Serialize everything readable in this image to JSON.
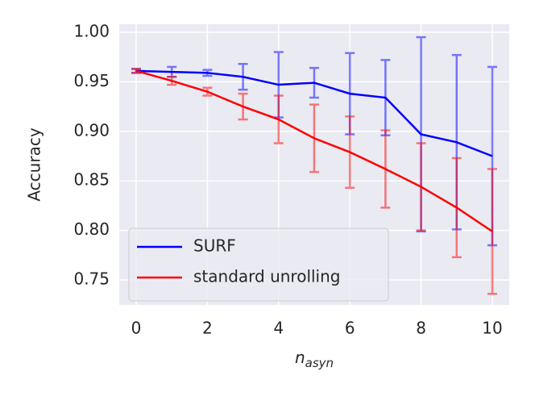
{
  "chart_data": {
    "type": "line",
    "ylabel": "Accuracy",
    "xlabel": {
      "base": "n",
      "subscript": "asyn"
    },
    "xlim": [
      -0.475,
      10.475
    ],
    "xticks": [
      0,
      2,
      4,
      6,
      8,
      10
    ],
    "ylim": [
      0.7248,
      1.0081
    ],
    "yticks": [
      0.75,
      {
        "value": 0.8,
        "label": "0.80"
      },
      0.85,
      {
        "value": 0.9,
        "label": "0.90"
      },
      0.95,
      {
        "value": 1,
        "label": "1.00"
      }
    ],
    "grid": true,
    "legend": "lower left",
    "x": [
      0,
      1,
      2,
      3,
      4,
      5,
      6,
      7,
      8,
      9,
      10
    ],
    "series": [
      {
        "name": "SURF",
        "color": "#0000ff",
        "values": [
          0.961,
          0.96,
          0.959,
          0.955,
          0.947,
          0.949,
          0.938,
          0.934,
          0.897,
          0.889,
          0.875
        ],
        "errors": [
          0.002,
          0.005,
          0.003,
          0.013,
          0.033,
          0.015,
          0.041,
          0.038,
          0.098,
          0.088,
          0.09
        ]
      },
      {
        "name": "standard unrolling",
        "color": "#ff0000",
        "values": [
          0.961,
          0.951,
          0.94,
          0.925,
          0.912,
          0.893,
          0.879,
          0.862,
          0.844,
          0.823,
          0.799
        ],
        "errors": [
          0.002,
          0.004,
          0.004,
          0.013,
          0.024,
          0.034,
          0.036,
          0.039,
          0.044,
          0.05,
          0.063
        ]
      }
    ]
  }
}
